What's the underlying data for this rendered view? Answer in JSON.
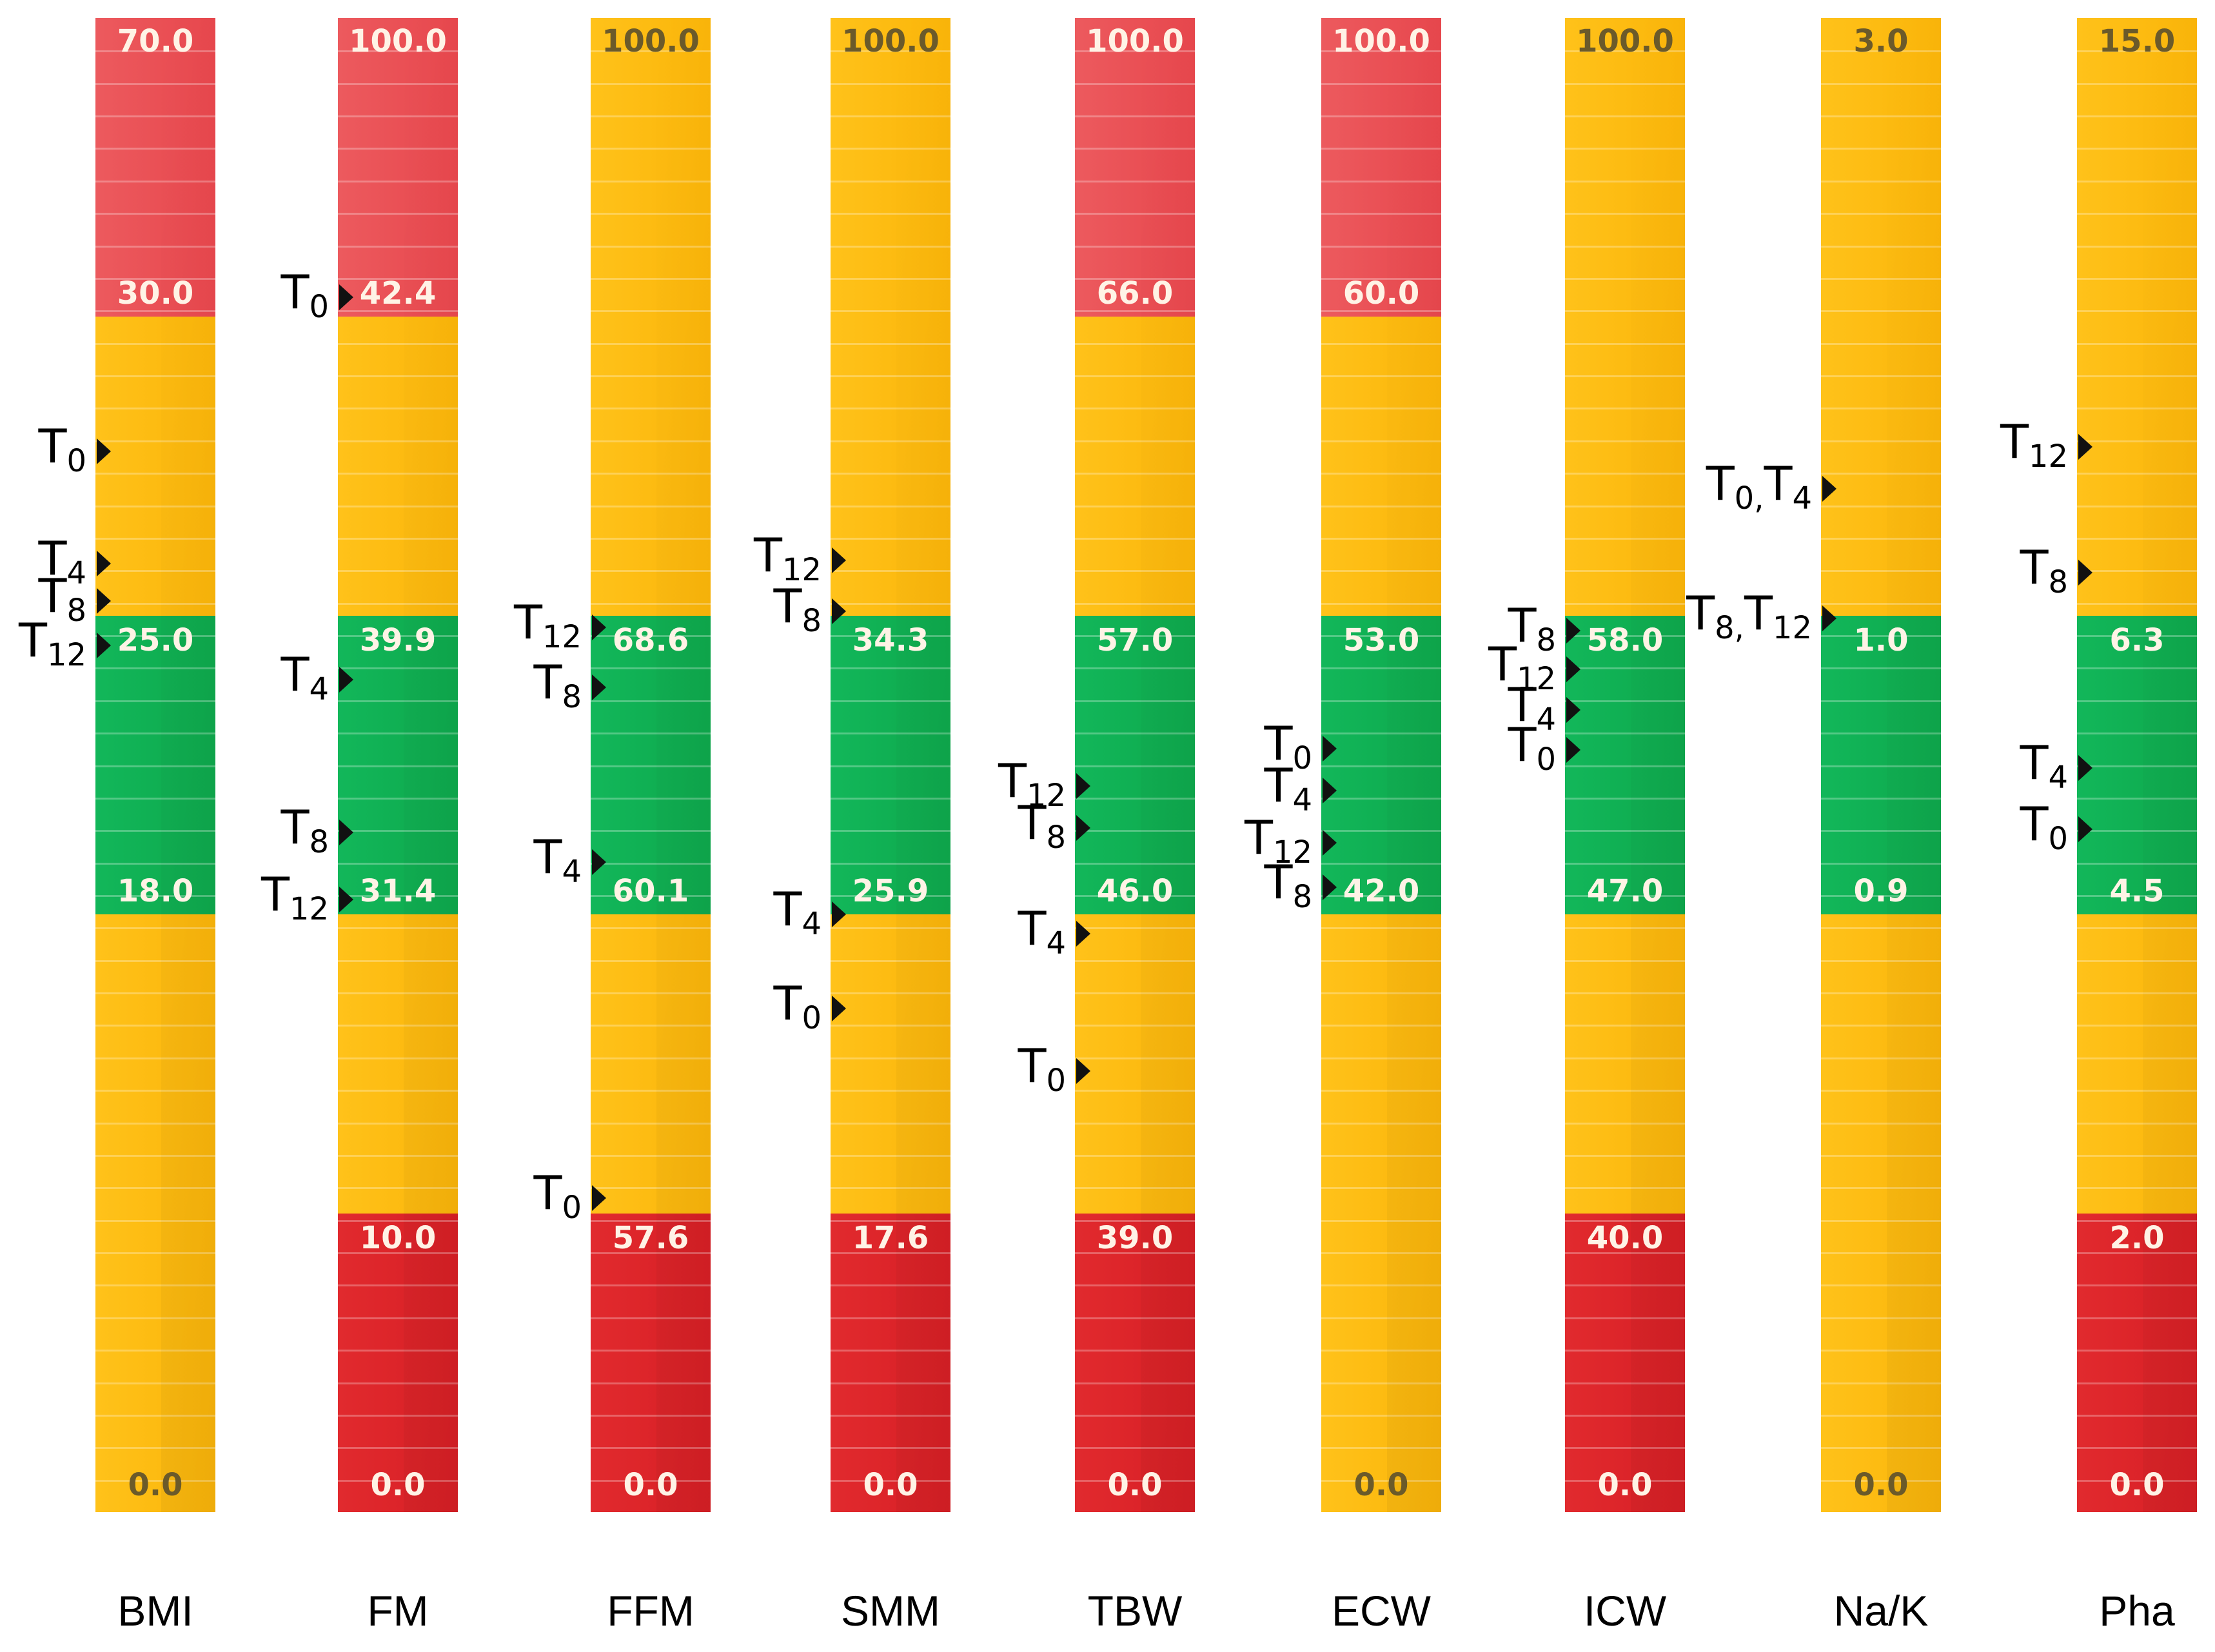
{
  "chart_data": {
    "type": "range-bars",
    "title": "",
    "colors": {
      "red": "#e8474d",
      "red_dark": "#d81f25",
      "yellow": "#fbb509",
      "green": "#0ea84c"
    },
    "bars": [
      {
        "category": "BMI",
        "ticks": [
          "70.0",
          "30.0",
          "25.0",
          "18.0",
          "0.0"
        ],
        "zones": [
          "red",
          "yellow",
          "green",
          "yellow",
          "yellow"
        ],
        "markers": [
          {
            "label": "T",
            "sub": "0",
            "pos": 0.29
          },
          {
            "label": "T",
            "sub": "4",
            "pos": 0.365
          },
          {
            "label": "T",
            "sub": "8",
            "pos": 0.39
          },
          {
            "label": "T",
            "sub": "12",
            "pos": 0.42
          }
        ]
      },
      {
        "category": "FM",
        "ticks": [
          "100.0",
          "42.4",
          "39.9",
          "31.4",
          "10.0",
          "0.0"
        ],
        "zones": [
          "red",
          "yellow",
          "green",
          "yellow",
          "red"
        ],
        "markers": [
          {
            "label": "T",
            "sub": "0",
            "pos": 0.187
          },
          {
            "label": "T",
            "sub": "4",
            "pos": 0.443
          },
          {
            "label": "T",
            "sub": "8",
            "pos": 0.545
          },
          {
            "label": "T",
            "sub": "12",
            "pos": 0.59
          }
        ]
      },
      {
        "category": "FFM",
        "ticks": [
          "100.0",
          "68.6",
          "60.1",
          "57.6",
          "0.0"
        ],
        "zones": [
          "yellow",
          "yellow",
          "green",
          "yellow",
          "red"
        ],
        "markers": [
          {
            "label": "T",
            "sub": "12",
            "pos": 0.408
          },
          {
            "label": "T",
            "sub": "8",
            "pos": 0.448
          },
          {
            "label": "T",
            "sub": "4",
            "pos": 0.565
          },
          {
            "label": "T",
            "sub": "0",
            "pos": 0.79
          }
        ]
      },
      {
        "category": "SMM",
        "ticks": [
          "100.0",
          "34.3",
          "25.9",
          "17.6",
          "0.0"
        ],
        "zones": [
          "yellow",
          "yellow",
          "green",
          "yellow",
          "red"
        ],
        "markers": [
          {
            "label": "T",
            "sub": "12",
            "pos": 0.363
          },
          {
            "label": "T",
            "sub": "8",
            "pos": 0.397
          },
          {
            "label": "T",
            "sub": "4",
            "pos": 0.6
          },
          {
            "label": "T",
            "sub": "0",
            "pos": 0.663
          }
        ]
      },
      {
        "category": "TBW",
        "ticks": [
          "100.0",
          "66.0",
          "57.0",
          "46.0",
          "39.0",
          "0.0"
        ],
        "zones": [
          "red",
          "yellow",
          "green",
          "yellow",
          "red"
        ],
        "markers": [
          {
            "label": "T",
            "sub": "12",
            "pos": 0.514
          },
          {
            "label": "T",
            "sub": "8",
            "pos": 0.542
          },
          {
            "label": "T",
            "sub": "4",
            "pos": 0.613
          },
          {
            "label": "T",
            "sub": "0",
            "pos": 0.705
          }
        ]
      },
      {
        "category": "ECW",
        "ticks": [
          "100.0",
          "60.0",
          "53.0",
          "42.0",
          "0.0"
        ],
        "zones": [
          "red",
          "yellow",
          "green",
          "yellow",
          "yellow"
        ],
        "markers": [
          {
            "label": "T",
            "sub": "0",
            "pos": 0.489
          },
          {
            "label": "T",
            "sub": "4",
            "pos": 0.517
          },
          {
            "label": "T",
            "sub": "12",
            "pos": 0.552
          },
          {
            "label": "T",
            "sub": "8",
            "pos": 0.582
          }
        ]
      },
      {
        "category": "ICW",
        "ticks": [
          "100.0",
          "58.0",
          "47.0",
          "40.0",
          "0.0"
        ],
        "zones": [
          "yellow",
          "yellow",
          "green",
          "yellow",
          "red"
        ],
        "markers": [
          {
            "label": "T",
            "sub": "8",
            "pos": 0.41
          },
          {
            "label": "T",
            "sub": "12",
            "pos": 0.436
          },
          {
            "label": "T",
            "sub": "4",
            "pos": 0.463
          },
          {
            "label": "T",
            "sub": "0",
            "pos": 0.49
          }
        ]
      },
      {
        "category": "Na/K",
        "ticks": [
          "3.0",
          "1.0",
          "0.9",
          "0.0"
        ],
        "zones": [
          "yellow",
          "yellow",
          "green",
          "yellow",
          "yellow"
        ],
        "markers": [
          {
            "label": "T",
            "sub": "0,",
            "label2": "T",
            "sub2": "4",
            "pos": 0.315
          },
          {
            "label": "T",
            "sub": "8,",
            "label2": "T",
            "sub2": "12",
            "pos": 0.402
          }
        ]
      },
      {
        "category": "Pha",
        "ticks": [
          "15.0",
          "6.3",
          "4.5",
          "2.0",
          "0.0"
        ],
        "zones": [
          "yellow",
          "yellow",
          "green",
          "yellow",
          "red"
        ],
        "markers": [
          {
            "label": "T",
            "sub": "12",
            "pos": 0.287
          },
          {
            "label": "T",
            "sub": "8",
            "pos": 0.371
          },
          {
            "label": "T",
            "sub": "4",
            "pos": 0.502
          },
          {
            "label": "T",
            "sub": "0",
            "pos": 0.543
          }
        ]
      }
    ]
  }
}
